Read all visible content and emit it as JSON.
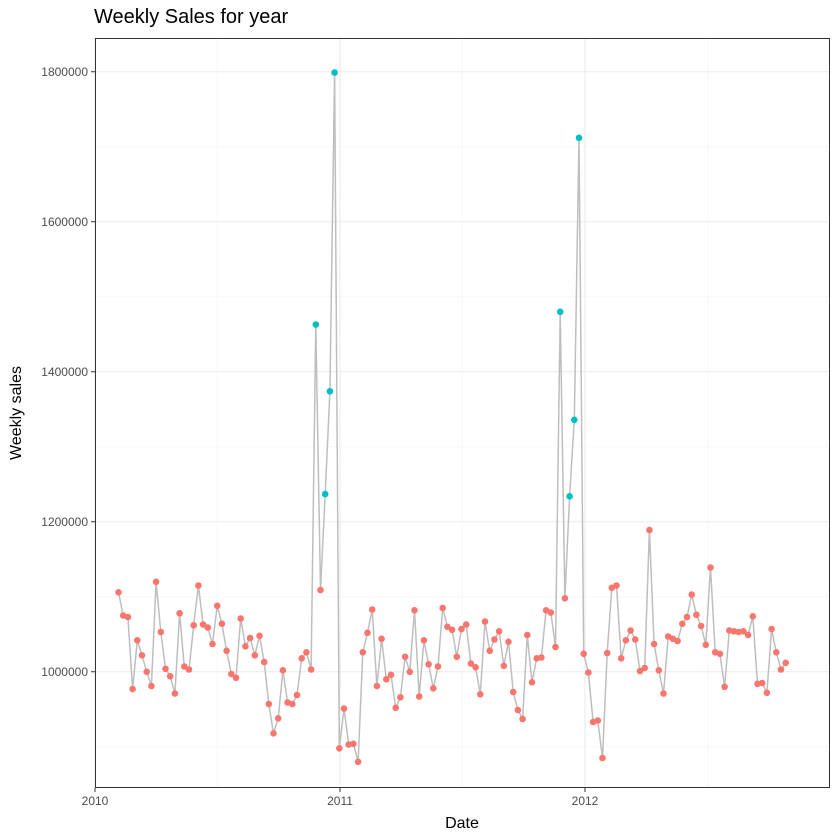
{
  "colors": {
    "normal_point": "#F8766D",
    "holiday_point": "#00BFC4",
    "line": "#BEBEBE",
    "grid_major": "#EBEBEB",
    "grid_minor": "#F5F5F5",
    "panel_border": "#333333"
  },
  "chart_data": {
    "type": "line",
    "title": "Weekly Sales for year",
    "xlabel": "Date",
    "ylabel": "Weekly sales",
    "xlim": [
      "2010-01-01",
      "2012-12-31"
    ],
    "ylim": [
      845000,
      1845000
    ],
    "x_ticks": [
      "2010-01-01",
      "2011-01-01",
      "2012-01-01"
    ],
    "x_tick_labels": [
      "2010",
      "2011",
      "2012"
    ],
    "y_ticks": [
      1000000,
      1200000,
      1400000,
      1600000,
      1800000
    ],
    "y_tick_labels": [
      "1000000",
      "1200000",
      "1400000",
      "1600000",
      "1800000"
    ],
    "grid": true,
    "legend": "none",
    "series": [
      {
        "x": [
          "2010-02-05",
          "2010-02-12",
          "2010-02-19",
          "2010-02-26",
          "2010-03-05",
          "2010-03-12",
          "2010-03-19",
          "2010-03-26",
          "2010-04-02",
          "2010-04-09",
          "2010-04-16",
          "2010-04-23",
          "2010-04-30",
          "2010-05-07",
          "2010-05-14",
          "2010-05-21",
          "2010-05-28",
          "2010-06-04",
          "2010-06-11",
          "2010-06-18",
          "2010-06-25",
          "2010-07-02",
          "2010-07-09",
          "2010-07-16",
          "2010-07-23",
          "2010-07-30",
          "2010-08-06",
          "2010-08-13",
          "2010-08-20",
          "2010-08-27",
          "2010-09-03",
          "2010-09-10",
          "2010-09-17",
          "2010-09-24",
          "2010-10-01",
          "2010-10-08",
          "2010-10-15",
          "2010-10-22",
          "2010-10-29",
          "2010-11-05",
          "2010-11-12",
          "2010-11-19",
          "2010-11-26",
          "2010-12-03",
          "2010-12-10",
          "2010-12-17",
          "2010-12-24",
          "2010-12-31",
          "2011-01-07",
          "2011-01-14",
          "2011-01-21",
          "2011-01-28",
          "2011-02-04",
          "2011-02-11",
          "2011-02-18",
          "2011-02-25",
          "2011-03-04",
          "2011-03-11",
          "2011-03-18",
          "2011-03-25",
          "2011-04-01",
          "2011-04-08",
          "2011-04-15",
          "2011-04-22",
          "2011-04-29",
          "2011-05-06",
          "2011-05-13",
          "2011-05-20",
          "2011-05-27",
          "2011-06-03",
          "2011-06-10",
          "2011-06-17",
          "2011-06-24",
          "2011-07-01",
          "2011-07-08",
          "2011-07-15",
          "2011-07-22",
          "2011-07-29",
          "2011-08-05",
          "2011-08-12",
          "2011-08-19",
          "2011-08-26",
          "2011-09-02",
          "2011-09-09",
          "2011-09-16",
          "2011-09-23",
          "2011-09-30",
          "2011-10-07",
          "2011-10-14",
          "2011-10-21",
          "2011-10-28",
          "2011-11-04",
          "2011-11-11",
          "2011-11-18",
          "2011-11-25",
          "2011-12-02",
          "2011-12-09",
          "2011-12-16",
          "2011-12-23",
          "2011-12-30",
          "2012-01-06",
          "2012-01-13",
          "2012-01-20",
          "2012-01-27",
          "2012-02-03",
          "2012-02-10",
          "2012-02-17",
          "2012-02-24",
          "2012-03-02",
          "2012-03-09",
          "2012-03-16",
          "2012-03-23",
          "2012-03-30",
          "2012-04-06",
          "2012-04-13",
          "2012-04-20",
          "2012-04-27",
          "2012-05-04",
          "2012-05-11",
          "2012-05-18",
          "2012-05-25",
          "2012-06-01",
          "2012-06-08",
          "2012-06-15",
          "2012-06-22",
          "2012-06-29",
          "2012-07-06",
          "2012-07-13",
          "2012-07-20",
          "2012-07-27",
          "2012-08-03",
          "2012-08-10",
          "2012-08-17",
          "2012-08-24",
          "2012-08-31",
          "2012-09-07",
          "2012-09-14",
          "2012-09-21",
          "2012-09-28",
          "2012-10-05",
          "2012-10-12",
          "2012-10-19",
          "2012-10-26"
        ],
        "values": [
          1106000,
          1075000,
          1073000,
          977000,
          1042000,
          1022000,
          1000000,
          981000,
          1120000,
          1053000,
          1004000,
          994000,
          971000,
          1078000,
          1007000,
          1003000,
          1062000,
          1115000,
          1063000,
          1059000,
          1037000,
          1088000,
          1064000,
          1028000,
          997000,
          992000,
          1071000,
          1034000,
          1045000,
          1022000,
          1048000,
          1013000,
          957000,
          918000,
          938000,
          1002000,
          959000,
          957000,
          969000,
          1018000,
          1026000,
          1003000,
          1463000,
          1109000,
          1237000,
          1374000,
          1799000,
          898000,
          951000,
          903000,
          904000,
          880000,
          1026000,
          1052000,
          1083000,
          981000,
          1044000,
          990000,
          996000,
          952000,
          966000,
          1020000,
          1000000,
          1082000,
          967000,
          1042000,
          1010000,
          978000,
          1007000,
          1085000,
          1060000,
          1056000,
          1020000,
          1057000,
          1063000,
          1011000,
          1006000,
          970000,
          1067000,
          1028000,
          1043000,
          1054000,
          1008000,
          1040000,
          973000,
          949000,
          937000,
          1049000,
          986000,
          1018000,
          1019000,
          1082000,
          1079000,
          1033000,
          1480000,
          1098000,
          1234000,
          1336000,
          1712000,
          1024000,
          999000,
          933000,
          935000,
          885000,
          1025000,
          1112000,
          1115000,
          1018000,
          1042000,
          1055000,
          1043000,
          1001000,
          1005000,
          1189000,
          1037000,
          1002000,
          971000,
          1047000,
          1044000,
          1041000,
          1064000,
          1073000,
          1103000,
          1076000,
          1061000,
          1036000,
          1139000,
          1026000,
          1024000,
          980000,
          1055000,
          1054000,
          1053000,
          1054000,
          1049000,
          1074000,
          984000,
          985000,
          972000,
          1057000,
          1026000,
          1003000,
          1012000
        ],
        "holiday": [
          false,
          false,
          false,
          false,
          false,
          false,
          false,
          false,
          false,
          false,
          false,
          false,
          false,
          false,
          false,
          false,
          false,
          false,
          false,
          false,
          false,
          false,
          false,
          false,
          false,
          false,
          false,
          false,
          false,
          false,
          false,
          false,
          false,
          false,
          false,
          false,
          false,
          false,
          false,
          false,
          false,
          false,
          true,
          false,
          true,
          true,
          true,
          false,
          false,
          false,
          false,
          false,
          false,
          false,
          false,
          false,
          false,
          false,
          false,
          false,
          false,
          false,
          false,
          false,
          false,
          false,
          false,
          false,
          false,
          false,
          false,
          false,
          false,
          false,
          false,
          false,
          false,
          false,
          false,
          false,
          false,
          false,
          false,
          false,
          false,
          false,
          false,
          false,
          false,
          false,
          false,
          false,
          false,
          false,
          true,
          false,
          true,
          true,
          true,
          false,
          false,
          false,
          false,
          false,
          false,
          false,
          false,
          false,
          false,
          false,
          false,
          false,
          false,
          false,
          false,
          false,
          false,
          false,
          false,
          false,
          false,
          false,
          false,
          false,
          false,
          false,
          false,
          false,
          false,
          false,
          false,
          false,
          false,
          false,
          false,
          false,
          false,
          false,
          false,
          false,
          false,
          false,
          false
        ]
      }
    ]
  }
}
